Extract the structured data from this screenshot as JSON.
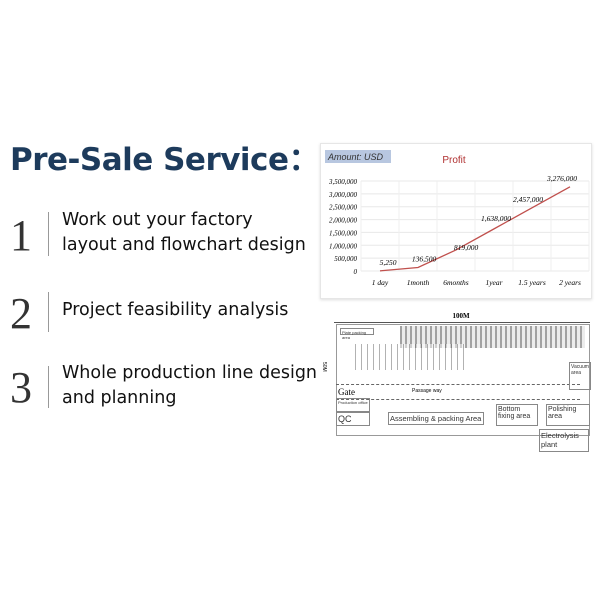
{
  "title": "Pre-Sale Service：",
  "items": [
    {
      "number": "1",
      "text_lines": [
        "Work out your factory",
        "layout and flowchart design"
      ]
    },
    {
      "number": "2",
      "text_lines": [
        "Project feasibility analysis"
      ]
    },
    {
      "number": "3",
      "text_lines": [
        "Whole production line design",
        "and planning"
      ]
    }
  ],
  "chart_data": {
    "type": "line",
    "title": "Profit",
    "badge": "Amount: USD",
    "categories": [
      "1 day",
      "1month",
      "6months",
      "1year",
      "1.5 years",
      "2 years"
    ],
    "values": [
      5250,
      136500,
      819000,
      1638000,
      2457000,
      3276000
    ],
    "data_labels": [
      "5,250",
      "136,500",
      "819,000",
      "1,638,000",
      "2,457,000",
      "3,276,000"
    ],
    "y_ticks": [
      "0",
      "500,000",
      "1,000,000",
      "1,500,000",
      "2,000,000",
      "2,500,000",
      "3,000,000",
      "3,500,000"
    ],
    "ylim": [
      0,
      3500000
    ],
    "grid": true,
    "line_color": "#c0504d"
  },
  "plan": {
    "width_label": "100M",
    "height_label": "50M",
    "areas": {
      "packing": "Plate packing area",
      "gate": "Gate",
      "passage": "Passage way",
      "vacuum": "Vacuum area",
      "office": "Production office",
      "qc": "QC",
      "assembling": "Assembling & packing Area",
      "bottom": "Bottom fixing area",
      "polishing": "Polishing area",
      "electrolysis": "Electrolysis plant"
    }
  }
}
